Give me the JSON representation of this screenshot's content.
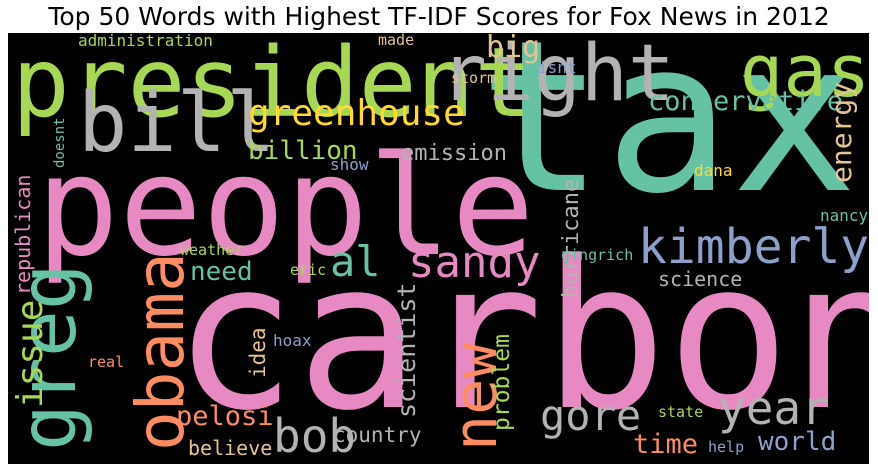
{
  "title": "Top 50 Words with Highest TF-IDF Scores for Fox News in 2012",
  "colors": {
    "green": "#66c2a5",
    "orange": "#fc8d62",
    "blue": "#8da0cb",
    "pink": "#e78ac3",
    "lime": "#a6d854",
    "yellow": "#ffd92f",
    "tan": "#e5c494",
    "gray": "#b3b3b3"
  },
  "words": [
    {
      "text": "tax",
      "color": "#66c2a5"
    },
    {
      "text": "carbon",
      "color": "#e78ac3"
    },
    {
      "text": "people",
      "color": "#e78ac3"
    },
    {
      "text": "president",
      "color": "#a6d854"
    },
    {
      "text": "right",
      "color": "#b3b3b3"
    },
    {
      "text": "bill",
      "color": "#b3b3b3"
    },
    {
      "text": "gas",
      "color": "#a6d854"
    },
    {
      "text": "greg",
      "color": "#66c2a5"
    },
    {
      "text": "obama",
      "color": "#fc8d62"
    },
    {
      "text": "new",
      "color": "#fc8d62"
    },
    {
      "text": "kimberly",
      "color": "#8da0cb"
    },
    {
      "text": "greenhouse",
      "color": "#ffd92f"
    },
    {
      "text": "sandy",
      "color": "#e78ac3"
    },
    {
      "text": "al",
      "color": "#66c2a5"
    },
    {
      "text": "year",
      "color": "#b3b3b3"
    },
    {
      "text": "gore",
      "color": "#b3b3b3"
    },
    {
      "text": "bob",
      "color": "#b3b3b3"
    },
    {
      "text": "issue",
      "color": "#a6d854"
    },
    {
      "text": "conservative",
      "color": "#66c2a5"
    },
    {
      "text": "big",
      "color": "#e5c494"
    },
    {
      "text": "energy",
      "color": "#e5c494"
    },
    {
      "text": "billion",
      "color": "#a6d854"
    },
    {
      "text": "emission",
      "color": "#b3b3b3"
    },
    {
      "text": "need",
      "color": "#66c2a5"
    },
    {
      "text": "scientist",
      "color": "#b3b3b3"
    },
    {
      "text": "problem",
      "color": "#a6d854"
    },
    {
      "text": "pelosi",
      "color": "#fc8d62"
    },
    {
      "text": "time",
      "color": "#fc8d62"
    },
    {
      "text": "world",
      "color": "#8da0cb"
    },
    {
      "text": "country",
      "color": "#b3b3b3"
    },
    {
      "text": "believe",
      "color": "#e5c494"
    },
    {
      "text": "science",
      "color": "#b3b3b3"
    },
    {
      "text": "hurricane",
      "color": "#b3b3b3"
    },
    {
      "text": "republican",
      "color": "#e78ac3"
    },
    {
      "text": "idea",
      "color": "#e5c494"
    },
    {
      "text": "administration",
      "color": "#a6d854"
    },
    {
      "text": "made",
      "color": "#e5c494"
    },
    {
      "text": "storm",
      "color": "#e5c494"
    },
    {
      "text": "isnt",
      "color": "#8da0cb"
    },
    {
      "text": "doesnt",
      "color": "#66c2a5"
    },
    {
      "text": "show",
      "color": "#8da0cb"
    },
    {
      "text": "dana",
      "color": "#ffd92f"
    },
    {
      "text": "nancy",
      "color": "#66c2a5"
    },
    {
      "text": "gingrich",
      "color": "#66c2a5"
    },
    {
      "text": "weather",
      "color": "#a6d854"
    },
    {
      "text": "eric",
      "color": "#a6d854"
    },
    {
      "text": "hoax",
      "color": "#8da0cb"
    },
    {
      "text": "real",
      "color": "#fc8d62"
    },
    {
      "text": "state",
      "color": "#a6d854"
    },
    {
      "text": "help",
      "color": "#8da0cb"
    }
  ]
}
